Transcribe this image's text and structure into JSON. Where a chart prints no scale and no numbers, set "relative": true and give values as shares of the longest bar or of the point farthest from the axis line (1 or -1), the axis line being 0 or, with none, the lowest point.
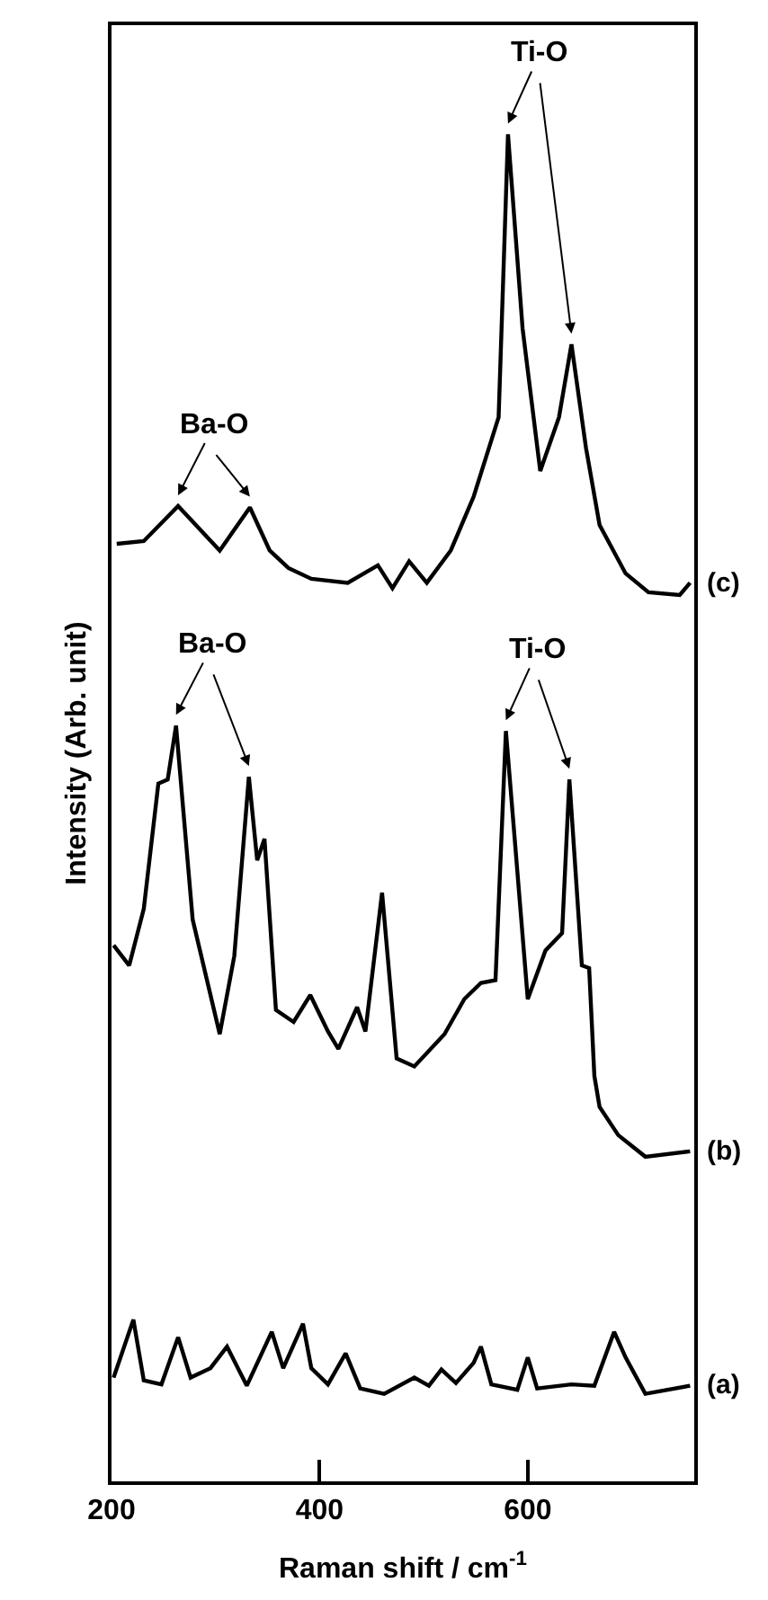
{
  "chart_data": {
    "type": "line",
    "relative": true,
    "xlabel": "Raman shift / cm$^{-1}$",
    "ylabel": "Intensity (Arb. unit)",
    "xlim": [
      200,
      760
    ],
    "xticks": [
      200,
      400,
      600
    ],
    "tick_labels": "x",
    "legend": false,
    "marker": "none",
    "line_style": "solid",
    "series": [
      {
        "name": "(c)",
        "color": "#000000",
        "x": [
          205,
          231,
          264,
          304,
          333,
          352,
          370,
          392,
          427,
          456,
          470,
          486,
          503,
          526,
          548,
          572,
          581,
          595,
          612,
          630,
          642,
          656,
          669,
          694,
          716,
          746,
          756
        ],
        "values": [
          0.696,
          0.698,
          0.724,
          0.691,
          0.723,
          0.691,
          0.678,
          0.67,
          0.667,
          0.68,
          0.663,
          0.683,
          0.667,
          0.691,
          0.731,
          0.79,
          1.0,
          0.856,
          0.75,
          0.79,
          0.844,
          0.767,
          0.71,
          0.674,
          0.66,
          0.658,
          0.667
        ]
      },
      {
        "name": "(b)",
        "color": "#000000",
        "x": [
          202,
          217,
          231,
          245,
          254,
          262,
          278,
          304,
          318,
          332,
          340,
          347,
          358,
          375,
          391,
          408,
          418,
          436,
          444,
          460,
          474,
          491,
          520,
          539,
          555,
          569,
          579,
          600,
          617,
          633,
          640,
          652,
          659,
          664,
          669,
          687,
          713,
          756
        ],
        "values": [
          0.398,
          0.383,
          0.425,
          0.518,
          0.521,
          0.561,
          0.417,
          0.332,
          0.39,
          0.523,
          0.461,
          0.477,
          0.35,
          0.341,
          0.361,
          0.334,
          0.321,
          0.352,
          0.334,
          0.437,
          0.314,
          0.308,
          0.332,
          0.358,
          0.37,
          0.372,
          0.557,
          0.358,
          0.394,
          0.407,
          0.521,
          0.383,
          0.381,
          0.301,
          0.278,
          0.257,
          0.241,
          0.245
        ]
      },
      {
        "name": "(a)",
        "color": "#000000",
        "x": [
          202,
          221,
          231,
          248,
          264,
          276,
          295,
          311,
          330,
          354,
          365,
          384,
          392,
          408,
          425,
          439,
          462,
          491,
          505,
          517,
          531,
          548,
          555,
          565,
          590,
          600,
          609,
          642,
          664,
          683,
          694,
          713,
          756
        ],
        "values": [
          0.077,
          0.12,
          0.075,
          0.072,
          0.107,
          0.077,
          0.084,
          0.1,
          0.071,
          0.111,
          0.084,
          0.117,
          0.084,
          0.072,
          0.095,
          0.069,
          0.065,
          0.077,
          0.071,
          0.083,
          0.073,
          0.088,
          0.1,
          0.072,
          0.068,
          0.092,
          0.069,
          0.072,
          0.071,
          0.111,
          0.092,
          0.065,
          0.071
        ]
      }
    ],
    "annotations": [
      {
        "text": "Ba-O",
        "x": 264,
        "y": 0.724
      },
      {
        "text": "Ti-O",
        "x": 581,
        "y": 1.0
      },
      {
        "text": "Ba-O",
        "x": 262,
        "y": 0.561
      },
      {
        "text": "Ti-O",
        "x": 579,
        "y": 0.557
      }
    ]
  }
}
